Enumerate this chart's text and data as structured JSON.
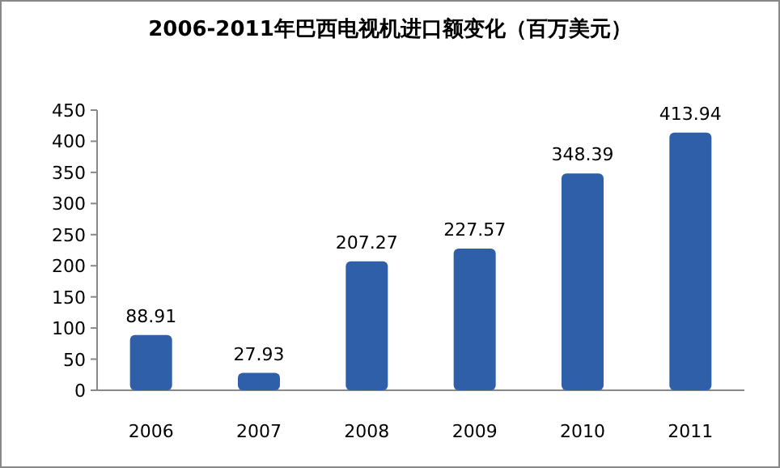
{
  "chart_data": {
    "type": "bar",
    "title": "2006-2011年巴西电视机进口额变化（百万美元）",
    "categories": [
      "2006",
      "2007",
      "2008",
      "2009",
      "2010",
      "2011"
    ],
    "values": [
      88.91,
      27.93,
      207.27,
      227.57,
      348.39,
      413.94
    ],
    "color": "#2e5fa8",
    "ylim": [
      0,
      450
    ],
    "yticks": [
      0,
      50,
      100,
      150,
      200,
      250,
      300,
      350,
      400,
      450
    ],
    "data_labels": true
  }
}
